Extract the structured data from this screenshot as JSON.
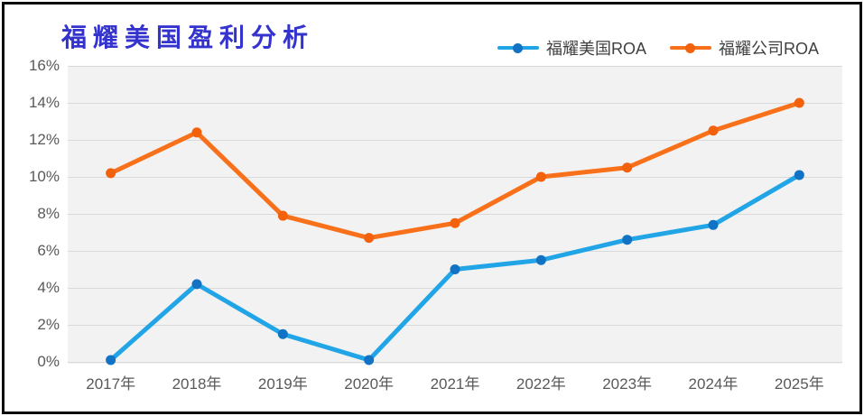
{
  "chart_data": {
    "type": "line",
    "title": "福耀美国盈利分析",
    "title_color": "#3433cd",
    "categories": [
      "2017年",
      "2018年",
      "2019年",
      "2020年",
      "2021年",
      "2022年",
      "2023年",
      "2024年",
      "2025年"
    ],
    "series": [
      {
        "name": "福耀美国ROA",
        "values": [
          0.1,
          4.2,
          1.5,
          0.1,
          5.0,
          5.5,
          6.6,
          7.4,
          10.1
        ],
        "line_color": "#22a5e6",
        "marker_color": "#1273c4"
      },
      {
        "name": "福耀公司ROA",
        "values": [
          10.2,
          12.4,
          7.9,
          6.7,
          7.5,
          10.0,
          10.5,
          12.5,
          14.0
        ],
        "line_color": "#f9701a",
        "marker_color": "#f2610c"
      }
    ],
    "y_ticks": [
      "16%",
      "14%",
      "12%",
      "10%",
      "8%",
      "6%",
      "4%",
      "2%",
      "0%"
    ],
    "ylim": [
      0,
      16
    ],
    "y_tick_step": 2,
    "xlabel": "",
    "ylabel": "",
    "legend_position": "top-right",
    "grid": "horizontal",
    "plot_bg": "#f2f2f2",
    "grid_color": "#d9d9d9",
    "axis_text_color": "#595959"
  }
}
